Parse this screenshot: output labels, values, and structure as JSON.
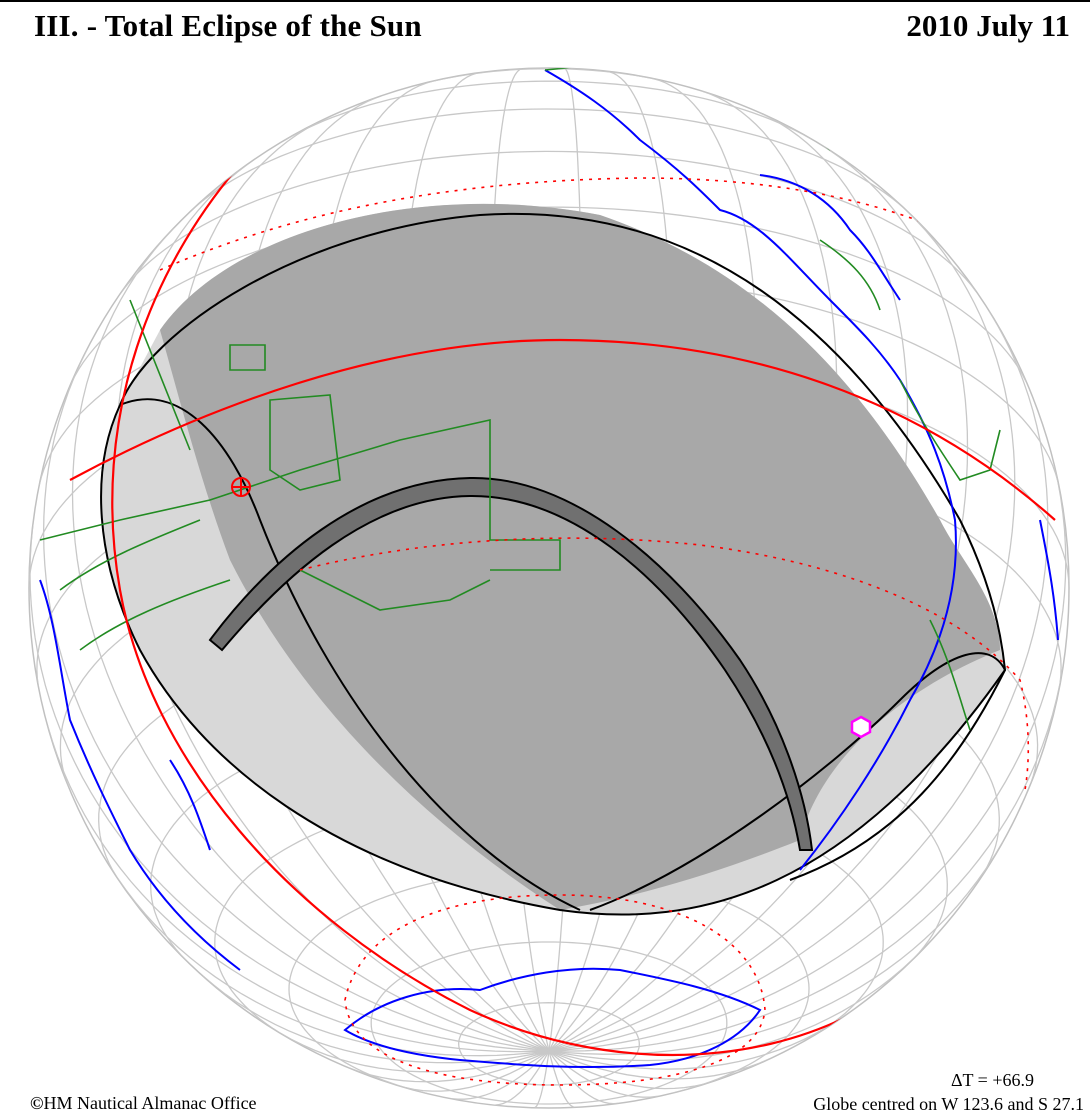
{
  "header": {
    "title": "III. - Total Eclipse of the Sun",
    "date": "2010 July 11"
  },
  "footer": {
    "copyright": "HM Nautical Almanac Office",
    "delta_t": "ΔT = +66.9",
    "globe_centre": "Globe centred on W 123.6 and S 27.1"
  },
  "map": {
    "projection": "orthographic",
    "centre_longitude": -123.6,
    "centre_latitude": -27.1,
    "colors": {
      "coastline": "#0000ff",
      "borders": "#228b22",
      "graticule": "#c8c8c8",
      "curves": "#ff0000",
      "eclipse_outline": "#000000",
      "penumbra_fill": "#a0a0a0",
      "totality_fill": "#606060",
      "marker_point": "#ff00ff"
    },
    "markers": [
      {
        "name": "crosshair-marker",
        "color": "#ff0000"
      },
      {
        "name": "hexagon-marker",
        "color": "#ff00ff"
      }
    ]
  }
}
